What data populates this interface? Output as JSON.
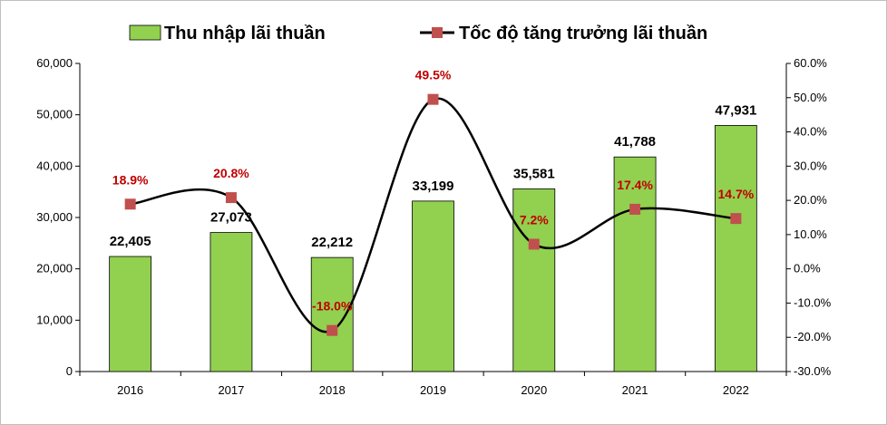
{
  "chart_data": {
    "type": "bar",
    "categories": [
      "2016",
      "2017",
      "2018",
      "2019",
      "2020",
      "2021",
      "2022"
    ],
    "series": [
      {
        "name": "Thu nhập lãi thuần",
        "type": "bar",
        "axis": "left",
        "values": [
          22405,
          27073,
          22212,
          33199,
          35581,
          41788,
          47931
        ],
        "labels": [
          "22,405",
          "27,073",
          "22,212",
          "33,199",
          "35,581",
          "41,788",
          "47,931"
        ]
      },
      {
        "name": "Tốc độ tăng trưởng lãi thuần",
        "type": "line",
        "axis": "right",
        "smooth": true,
        "values": [
          18.9,
          20.8,
          -18.0,
          49.5,
          7.2,
          17.4,
          14.7
        ],
        "labels": [
          "18.9%",
          "20.8%",
          "-18.0%",
          "49.5%",
          "7.2%",
          "17.4%",
          "14.7%"
        ]
      }
    ],
    "y_left": {
      "ylim": [
        0,
        60000
      ],
      "ticks": [
        "0",
        "10,000",
        "20,000",
        "30,000",
        "40,000",
        "50,000",
        "60,000"
      ]
    },
    "y_right": {
      "ylim": [
        -30,
        60
      ],
      "ticks": [
        "-30.0%",
        "-20.0%",
        "-10.0%",
        "0.0%",
        "10.0%",
        "20.0%",
        "30.0%",
        "40.0%",
        "50.0%",
        "60.0%"
      ]
    },
    "grid": false,
    "legend_position": "top",
    "colors": {
      "bar_fill": "#92d050",
      "bar_stroke": "#000000",
      "line": "#000000",
      "marker": "#c0504d",
      "line_label": "#c00000"
    }
  }
}
